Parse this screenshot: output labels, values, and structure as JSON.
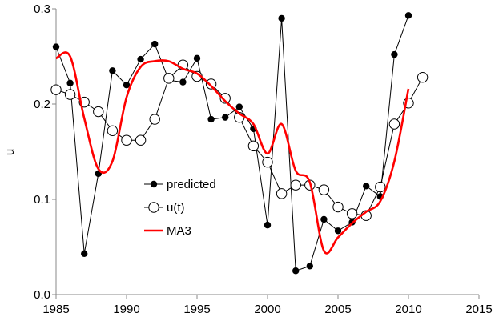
{
  "chart_data": {
    "type": "line",
    "title": "",
    "xlabel": "",
    "ylabel": "u",
    "xlim": [
      1985,
      2015
    ],
    "ylim": [
      0,
      0.3
    ],
    "x_ticks": [
      1985,
      1990,
      1995,
      2000,
      2005,
      2010,
      2015
    ],
    "y_ticks": [
      0,
      0.1,
      0.2,
      0.3
    ],
    "x_tick_labels": [
      "1985",
      "1990",
      "1995",
      "2000",
      "2005",
      "2010",
      "2015"
    ],
    "y_tick_labels": [
      "0.0",
      "0.1",
      "0.2",
      "0.3"
    ],
    "grid": false,
    "legend_placement": "center-left",
    "series": [
      {
        "name": "predicted",
        "color": "#000000",
        "marker": "filled-circle",
        "x": [
          1985,
          1986,
          1987,
          1988,
          1989,
          1990,
          1991,
          1992,
          1993,
          1994,
          1995,
          1996,
          1997,
          1998,
          1999,
          2000,
          2001,
          2002,
          2003,
          2004,
          2005,
          2006,
          2007,
          2008,
          2009,
          2010
        ],
        "y": [
          0.26,
          0.222,
          0.043,
          0.127,
          0.235,
          0.22,
          0.247,
          0.263,
          0.225,
          0.223,
          0.248,
          0.184,
          0.186,
          0.197,
          0.174,
          0.073,
          0.29,
          0.025,
          0.03,
          0.079,
          0.067,
          0.076,
          0.114,
          0.103,
          0.252,
          0.293
        ]
      },
      {
        "name": "u(t)",
        "color": "#000000",
        "marker": "open-circle",
        "x": [
          1985,
          1986,
          1987,
          1988,
          1989,
          1990,
          1991,
          1992,
          1993,
          1994,
          1995,
          1996,
          1997,
          1998,
          1999,
          2000,
          2001,
          2002,
          2003,
          2004,
          2005,
          2006,
          2007,
          2008,
          2009,
          2010,
          2011
        ],
        "y": [
          0.215,
          0.21,
          0.202,
          0.192,
          0.172,
          0.162,
          0.162,
          0.184,
          0.227,
          0.241,
          0.229,
          0.221,
          0.206,
          0.186,
          0.156,
          0.139,
          0.106,
          0.115,
          0.115,
          0.11,
          0.092,
          0.085,
          0.083,
          0.113,
          0.179,
          0.201,
          0.228
        ]
      },
      {
        "name": "MA3",
        "color": "#ff0000",
        "marker": "none",
        "smooth": true,
        "x": [
          1985,
          1986,
          1987,
          1988,
          1989,
          1990,
          1991,
          1992,
          1993,
          1994,
          1995,
          1996,
          1997,
          1998,
          1999,
          2000,
          2001,
          2002,
          2003,
          2004,
          2005,
          2006,
          2007,
          2008,
          2009,
          2010
        ],
        "y": [
          0.248,
          0.25,
          0.185,
          0.132,
          0.14,
          0.207,
          0.239,
          0.245,
          0.245,
          0.237,
          0.232,
          0.219,
          0.203,
          0.19,
          0.179,
          0.148,
          0.179,
          0.13,
          0.118,
          0.046,
          0.06,
          0.075,
          0.087,
          0.098,
          0.14,
          0.216
        ]
      }
    ]
  }
}
